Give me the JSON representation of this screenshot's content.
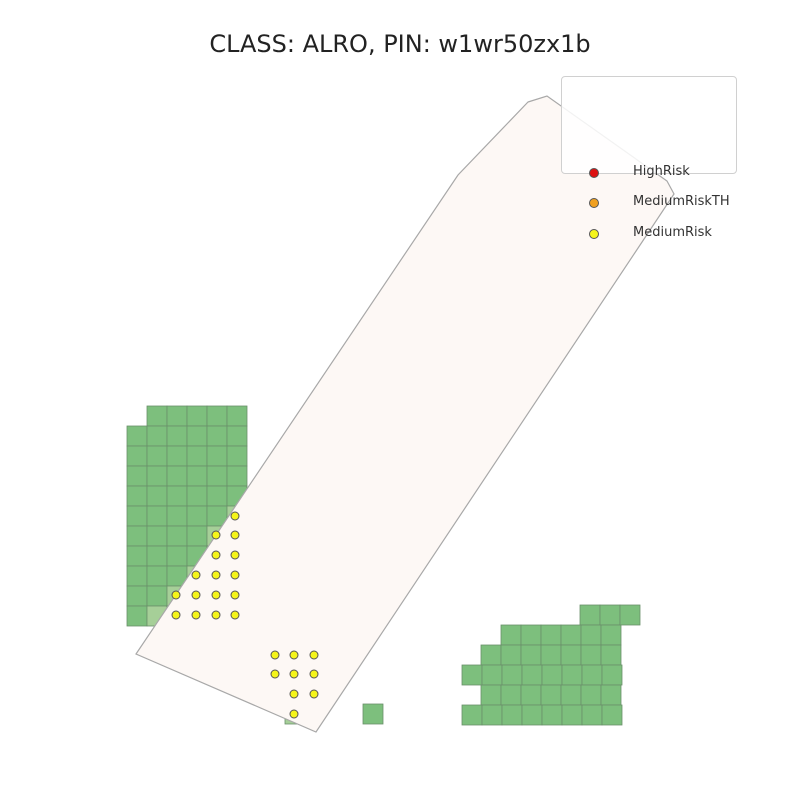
{
  "title": "CLASS: ALRO, PIN: w1wr50zx1b",
  "legend": {
    "items": [
      {
        "label": "HighRisk",
        "color": "#dd1111"
      },
      {
        "label": "MediumRiskTH",
        "color": "#f0a020"
      },
      {
        "label": "MediumRisk",
        "color": "#f5f51a"
      }
    ]
  },
  "colors": {
    "cell": "#7dbf7d",
    "cell_light": "#a6cf98",
    "cell_border": "#6a8f6a",
    "parcel_fill": "#fdf8f5",
    "parcel_stroke": "#a8a8a8",
    "point_fill": "#f5f51a",
    "point_stroke": "#555555"
  }
}
